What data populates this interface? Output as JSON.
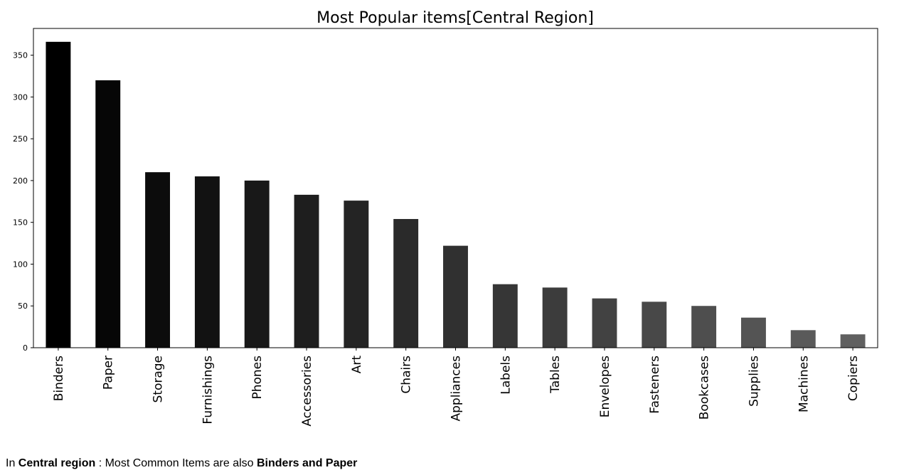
{
  "chart_data": {
    "type": "bar",
    "title": "Most Popular items[Central Region]",
    "xlabel": "",
    "ylabel": "",
    "categories": [
      "Binders",
      "Paper",
      "Storage",
      "Furnishings",
      "Phones",
      "Accessories",
      "Art",
      "Chairs",
      "Appliances",
      "Labels",
      "Tables",
      "Envelopes",
      "Fasteners",
      "Bookcases",
      "Supplies",
      "Machines",
      "Copiers"
    ],
    "values": [
      366,
      320,
      210,
      205,
      200,
      183,
      176,
      154,
      122,
      76,
      72,
      59,
      55,
      50,
      36,
      21,
      16
    ],
    "ylim": [
      0,
      382
    ],
    "yticks": [
      0,
      50,
      100,
      150,
      200,
      250,
      300,
      350
    ],
    "grid": false,
    "colors": [
      "#000000",
      "#060606",
      "#0c0c0c",
      "#121212",
      "#181818",
      "#1e1e1e",
      "#242424",
      "#2a2a2a",
      "#303030",
      "#363636",
      "#3c3c3c",
      "#424242",
      "#484848",
      "#4e4e4e",
      "#545454",
      "#5a5a5a",
      "#606060"
    ]
  },
  "caption": {
    "prefix": "In ",
    "region": "Central region",
    "middle": " : Most Common Items are also ",
    "items": "Binders and Paper"
  }
}
